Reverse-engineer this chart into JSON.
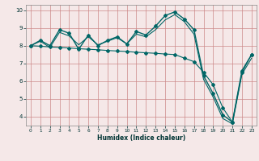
{
  "title": "",
  "xlabel": "Humidex (Indice chaleur)",
  "bg_color": "#f5e8e8",
  "grid_color": "#cc8888",
  "line_color": "#006666",
  "xlim": [
    -0.5,
    23.5
  ],
  "ylim": [
    3.5,
    10.3
  ],
  "yticks": [
    4,
    5,
    6,
    7,
    8,
    9,
    10
  ],
  "xticks": [
    0,
    1,
    2,
    3,
    4,
    5,
    6,
    7,
    8,
    9,
    10,
    11,
    12,
    13,
    14,
    15,
    16,
    17,
    18,
    19,
    20,
    21,
    22,
    23
  ],
  "series1_x": [
    0,
    1,
    2,
    3,
    4,
    5,
    6,
    7,
    8,
    9,
    10,
    11,
    12,
    13,
    14,
    15,
    16,
    17,
    18,
    19,
    20,
    21,
    22,
    23
  ],
  "series1_y": [
    8.0,
    8.3,
    8.0,
    8.9,
    8.7,
    7.8,
    8.6,
    8.0,
    8.3,
    8.5,
    8.1,
    8.8,
    8.6,
    9.1,
    9.7,
    9.9,
    9.5,
    8.9,
    6.3,
    5.3,
    4.1,
    3.7,
    6.6,
    7.5
  ],
  "series2_x": [
    0,
    1,
    2,
    3,
    4,
    5,
    6,
    7,
    8,
    9,
    10,
    11,
    12,
    13,
    14,
    15,
    16,
    17,
    18,
    19,
    20,
    21,
    22,
    23
  ],
  "series2_y": [
    8.0,
    8.25,
    7.9,
    8.75,
    8.55,
    8.05,
    8.5,
    8.05,
    8.25,
    8.45,
    8.1,
    8.65,
    8.5,
    8.9,
    9.45,
    9.75,
    9.35,
    8.65,
    6.1,
    5.1,
    3.9,
    3.6,
    6.4,
    7.3
  ],
  "series3_x": [
    0,
    1,
    2,
    3,
    4,
    5,
    6,
    7,
    8,
    9,
    10,
    11,
    12,
    13,
    14,
    15,
    16,
    17,
    18,
    19,
    20,
    21,
    22,
    23
  ],
  "series3_y": [
    8.0,
    7.97,
    7.93,
    7.9,
    7.87,
    7.83,
    7.8,
    7.77,
    7.73,
    7.7,
    7.67,
    7.63,
    7.6,
    7.57,
    7.53,
    7.5,
    7.3,
    7.1,
    6.5,
    5.8,
    4.5,
    3.7,
    6.5,
    7.5
  ]
}
